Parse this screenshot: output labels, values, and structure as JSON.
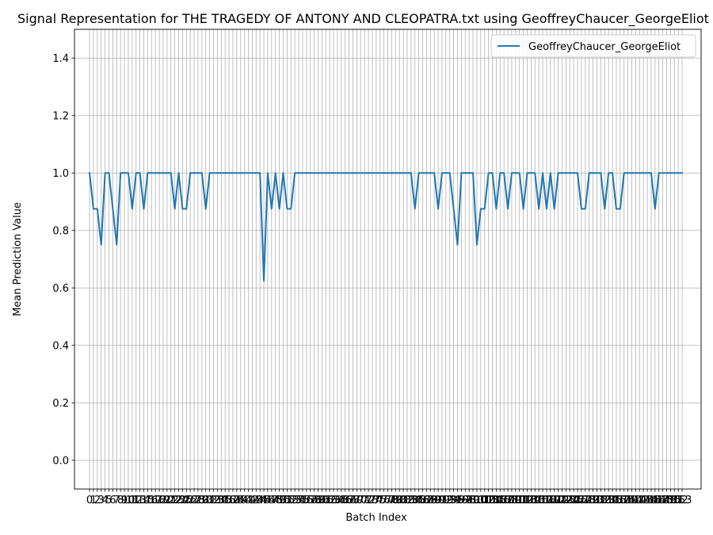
{
  "chart_data": {
    "type": "line",
    "title": "Signal Representation for THE TRAGEDY OF ANTONY AND CLEOPATRA.txt using GeoffreyChaucer_GeorgeEliot",
    "xlabel": "Batch Index",
    "ylabel": "Mean Prediction Value",
    "xlim": [
      -3.9,
      157.9
    ],
    "ylim": [
      -0.1,
      1.5
    ],
    "yticks": [
      0.0,
      0.2,
      0.4,
      0.6,
      0.8,
      1.0,
      1.2,
      1.4
    ],
    "ytick_labels": [
      "0.0",
      "0.2",
      "0.4",
      "0.6",
      "0.8",
      "1.0",
      "1.2",
      "1.4"
    ],
    "x_start": 0,
    "grid": true,
    "legend": {
      "placement": "top-right"
    },
    "series": [
      {
        "name": "GeoffreyChaucer_GeorgeEliot",
        "color": "#1f77b4",
        "values": [
          1.0,
          0.875,
          0.875,
          0.75,
          1.0,
          1.0,
          0.875,
          0.75,
          1.0,
          1.0,
          1.0,
          0.875,
          1.0,
          1.0,
          0.875,
          1.0,
          1.0,
          1.0,
          1.0,
          1.0,
          1.0,
          1.0,
          0.875,
          1.0,
          0.875,
          0.875,
          1.0,
          1.0,
          1.0,
          1.0,
          0.875,
          1.0,
          1.0,
          1.0,
          1.0,
          1.0,
          1.0,
          1.0,
          1.0,
          1.0,
          1.0,
          1.0,
          1.0,
          1.0,
          1.0,
          0.625,
          1.0,
          0.875,
          1.0,
          0.875,
          1.0,
          0.875,
          0.875,
          1.0,
          1.0,
          1.0,
          1.0,
          1.0,
          1.0,
          1.0,
          1.0,
          1.0,
          1.0,
          1.0,
          1.0,
          1.0,
          1.0,
          1.0,
          1.0,
          1.0,
          1.0,
          1.0,
          1.0,
          1.0,
          1.0,
          1.0,
          1.0,
          1.0,
          1.0,
          1.0,
          1.0,
          1.0,
          1.0,
          1.0,
          0.875,
          1.0,
          1.0,
          1.0,
          1.0,
          1.0,
          0.875,
          1.0,
          1.0,
          1.0,
          0.875,
          0.75,
          1.0,
          1.0,
          1.0,
          1.0,
          0.75,
          0.875,
          0.875,
          1.0,
          1.0,
          0.875,
          1.0,
          1.0,
          0.875,
          1.0,
          1.0,
          1.0,
          0.875,
          1.0,
          1.0,
          1.0,
          0.875,
          1.0,
          0.875,
          1.0,
          0.875,
          1.0,
          1.0,
          1.0,
          1.0,
          1.0,
          1.0,
          0.875,
          0.875,
          1.0,
          1.0,
          1.0,
          1.0,
          0.875,
          1.0,
          1.0,
          0.875,
          0.875,
          1.0,
          1.0,
          1.0,
          1.0,
          1.0,
          1.0,
          1.0,
          1.0,
          0.875,
          1.0,
          1.0,
          1.0,
          1.0,
          1.0,
          1.0,
          1.0
        ]
      }
    ]
  }
}
